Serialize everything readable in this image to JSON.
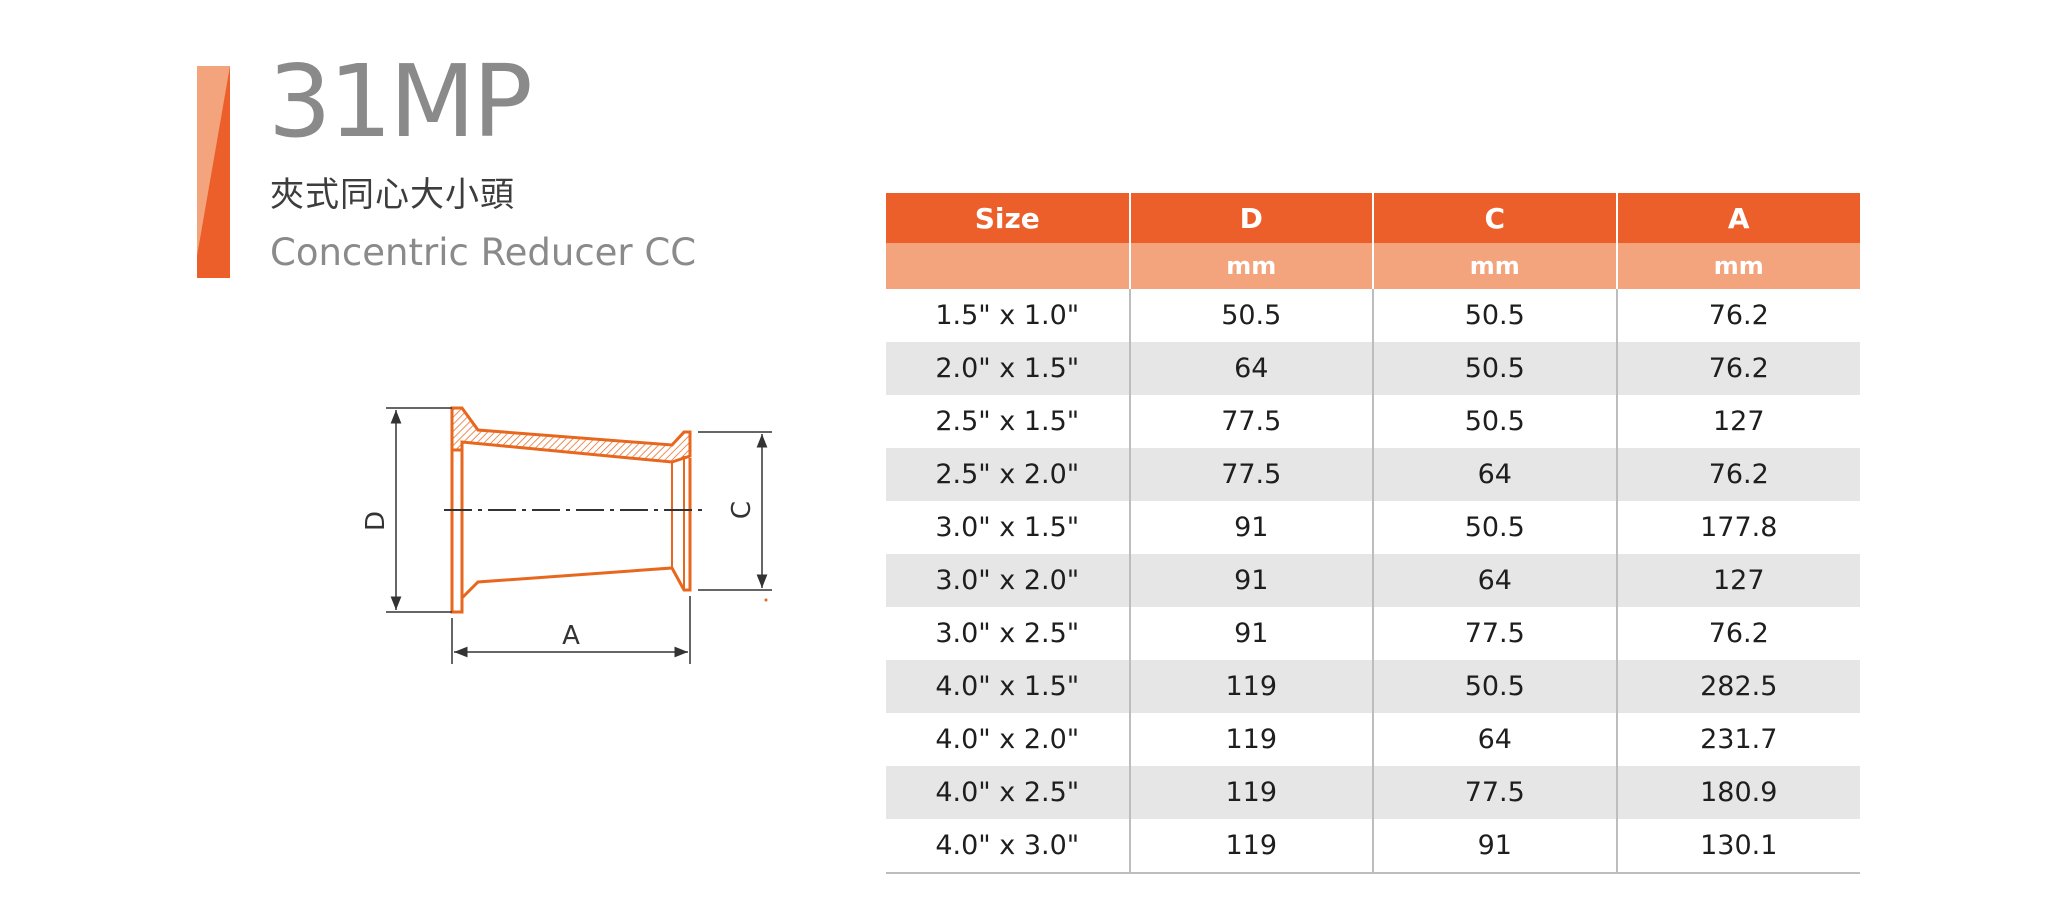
{
  "header": {
    "model_code": "31MP",
    "name_zh": "夾式同心大小頭",
    "name_en": "Concentric Reducer CC",
    "accent_color": "#ec5f2b",
    "accent_light_color": "#f3a47c"
  },
  "drawing": {
    "label_d": "D",
    "label_c": "C",
    "label_a": "A",
    "part_color": "#e8671e"
  },
  "table": {
    "headers": [
      "Size",
      "D",
      "C",
      "A"
    ],
    "units": [
      "",
      "mm",
      "mm",
      "mm"
    ],
    "rows": [
      [
        "1.5\" x 1.0\"",
        "50.5",
        "50.5",
        "76.2"
      ],
      [
        "2.0\" x 1.5\"",
        "64",
        "50.5",
        "76.2"
      ],
      [
        "2.5\" x 1.5\"",
        "77.5",
        "50.5",
        "127"
      ],
      [
        "2.5\" x 2.0\"",
        "77.5",
        "64",
        "76.2"
      ],
      [
        "3.0\" x 1.5\"",
        "91",
        "50.5",
        "177.8"
      ],
      [
        "3.0\" x 2.0\"",
        "91",
        "64",
        "127"
      ],
      [
        "3.0\" x 2.5\"",
        "91",
        "77.5",
        "76.2"
      ],
      [
        "4.0\" x 1.5\"",
        "119",
        "50.5",
        "282.5"
      ],
      [
        "4.0\" x 2.0\"",
        "119",
        "64",
        "231.7"
      ],
      [
        "4.0\" x 2.5\"",
        "119",
        "77.5",
        "180.9"
      ],
      [
        "4.0\" x 3.0\"",
        "119",
        "91",
        "130.1"
      ]
    ]
  }
}
